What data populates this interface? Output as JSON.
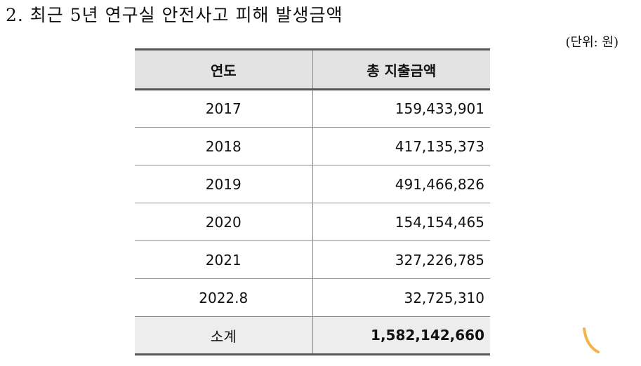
{
  "document": {
    "title": "2. 최근 5년 연구실 안전사고 피해 발생금액",
    "unit": "(단위: 원)"
  },
  "table": {
    "headers": [
      "연도",
      "총 지출금액"
    ],
    "rows": [
      {
        "year": "2017",
        "amount": "159,433,901"
      },
      {
        "year": "2018",
        "amount": "417,135,373"
      },
      {
        "year": "2019",
        "amount": "491,466,826"
      },
      {
        "year": "2020",
        "amount": "154,154,465"
      },
      {
        "year": "2021",
        "amount": "327,226,785"
      },
      {
        "year": "2022.8",
        "amount": "32,725,310"
      }
    ],
    "total": {
      "label": "소계",
      "amount": "1,582,142,660"
    }
  },
  "decoration": {
    "icon": "curved-stroke-icon",
    "color": "#f2b44a"
  }
}
